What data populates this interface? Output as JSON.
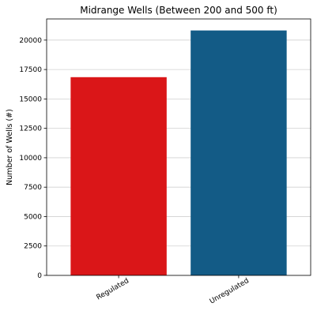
{
  "chart_data": {
    "type": "bar",
    "title": "Midrange Wells (Between 200 and 500 ft)",
    "xlabel": "",
    "ylabel": "Number of Wells (#)",
    "categories": [
      "Regulated",
      "Unregulated"
    ],
    "values": [
      16850,
      20820
    ],
    "colors": [
      "#da1618",
      "#135b86"
    ],
    "ylim": [
      0,
      21800
    ],
    "yticks": [
      0,
      2500,
      5000,
      7500,
      10000,
      12500,
      15000,
      17500,
      20000
    ],
    "grid": true
  }
}
